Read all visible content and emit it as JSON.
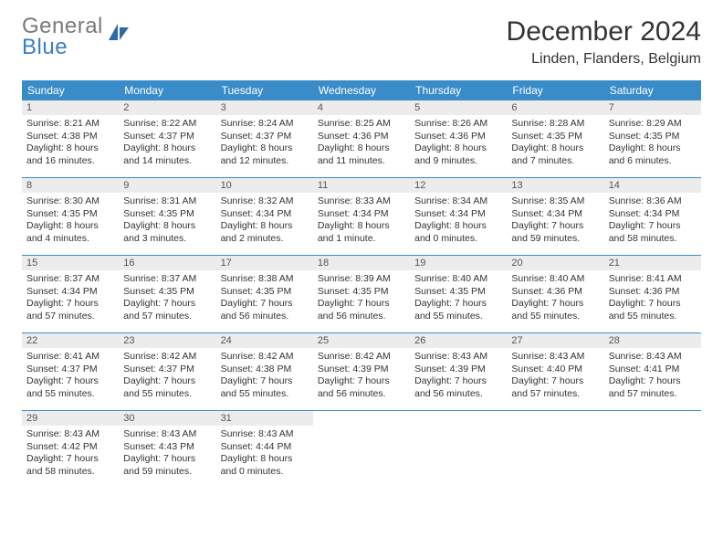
{
  "logo": {
    "line1": "General",
    "line2": "Blue",
    "color1": "#7a7a78",
    "color2": "#3a7fc4"
  },
  "header": {
    "month_title": "December 2024",
    "location": "Linden, Flanders, Belgium"
  },
  "styling": {
    "header_bg": "#3a8cc9",
    "header_fg": "#ffffff",
    "daybar_bg": "#ececec",
    "daybar_fg": "#555555",
    "row_border": "#3a8cc9",
    "page_bg": "#ffffff",
    "text": "#333333"
  },
  "weekdays": [
    "Sunday",
    "Monday",
    "Tuesday",
    "Wednesday",
    "Thursday",
    "Friday",
    "Saturday"
  ],
  "weeks": [
    [
      {
        "n": "1",
        "l1": "Sunrise: 8:21 AM",
        "l2": "Sunset: 4:38 PM",
        "l3": "Daylight: 8 hours",
        "l4": "and 16 minutes."
      },
      {
        "n": "2",
        "l1": "Sunrise: 8:22 AM",
        "l2": "Sunset: 4:37 PM",
        "l3": "Daylight: 8 hours",
        "l4": "and 14 minutes."
      },
      {
        "n": "3",
        "l1": "Sunrise: 8:24 AM",
        "l2": "Sunset: 4:37 PM",
        "l3": "Daylight: 8 hours",
        "l4": "and 12 minutes."
      },
      {
        "n": "4",
        "l1": "Sunrise: 8:25 AM",
        "l2": "Sunset: 4:36 PM",
        "l3": "Daylight: 8 hours",
        "l4": "and 11 minutes."
      },
      {
        "n": "5",
        "l1": "Sunrise: 8:26 AM",
        "l2": "Sunset: 4:36 PM",
        "l3": "Daylight: 8 hours",
        "l4": "and 9 minutes."
      },
      {
        "n": "6",
        "l1": "Sunrise: 8:28 AM",
        "l2": "Sunset: 4:35 PM",
        "l3": "Daylight: 8 hours",
        "l4": "and 7 minutes."
      },
      {
        "n": "7",
        "l1": "Sunrise: 8:29 AM",
        "l2": "Sunset: 4:35 PM",
        "l3": "Daylight: 8 hours",
        "l4": "and 6 minutes."
      }
    ],
    [
      {
        "n": "8",
        "l1": "Sunrise: 8:30 AM",
        "l2": "Sunset: 4:35 PM",
        "l3": "Daylight: 8 hours",
        "l4": "and 4 minutes."
      },
      {
        "n": "9",
        "l1": "Sunrise: 8:31 AM",
        "l2": "Sunset: 4:35 PM",
        "l3": "Daylight: 8 hours",
        "l4": "and 3 minutes."
      },
      {
        "n": "10",
        "l1": "Sunrise: 8:32 AM",
        "l2": "Sunset: 4:34 PM",
        "l3": "Daylight: 8 hours",
        "l4": "and 2 minutes."
      },
      {
        "n": "11",
        "l1": "Sunrise: 8:33 AM",
        "l2": "Sunset: 4:34 PM",
        "l3": "Daylight: 8 hours",
        "l4": "and 1 minute."
      },
      {
        "n": "12",
        "l1": "Sunrise: 8:34 AM",
        "l2": "Sunset: 4:34 PM",
        "l3": "Daylight: 8 hours",
        "l4": "and 0 minutes."
      },
      {
        "n": "13",
        "l1": "Sunrise: 8:35 AM",
        "l2": "Sunset: 4:34 PM",
        "l3": "Daylight: 7 hours",
        "l4": "and 59 minutes."
      },
      {
        "n": "14",
        "l1": "Sunrise: 8:36 AM",
        "l2": "Sunset: 4:34 PM",
        "l3": "Daylight: 7 hours",
        "l4": "and 58 minutes."
      }
    ],
    [
      {
        "n": "15",
        "l1": "Sunrise: 8:37 AM",
        "l2": "Sunset: 4:34 PM",
        "l3": "Daylight: 7 hours",
        "l4": "and 57 minutes."
      },
      {
        "n": "16",
        "l1": "Sunrise: 8:37 AM",
        "l2": "Sunset: 4:35 PM",
        "l3": "Daylight: 7 hours",
        "l4": "and 57 minutes."
      },
      {
        "n": "17",
        "l1": "Sunrise: 8:38 AM",
        "l2": "Sunset: 4:35 PM",
        "l3": "Daylight: 7 hours",
        "l4": "and 56 minutes."
      },
      {
        "n": "18",
        "l1": "Sunrise: 8:39 AM",
        "l2": "Sunset: 4:35 PM",
        "l3": "Daylight: 7 hours",
        "l4": "and 56 minutes."
      },
      {
        "n": "19",
        "l1": "Sunrise: 8:40 AM",
        "l2": "Sunset: 4:35 PM",
        "l3": "Daylight: 7 hours",
        "l4": "and 55 minutes."
      },
      {
        "n": "20",
        "l1": "Sunrise: 8:40 AM",
        "l2": "Sunset: 4:36 PM",
        "l3": "Daylight: 7 hours",
        "l4": "and 55 minutes."
      },
      {
        "n": "21",
        "l1": "Sunrise: 8:41 AM",
        "l2": "Sunset: 4:36 PM",
        "l3": "Daylight: 7 hours",
        "l4": "and 55 minutes."
      }
    ],
    [
      {
        "n": "22",
        "l1": "Sunrise: 8:41 AM",
        "l2": "Sunset: 4:37 PM",
        "l3": "Daylight: 7 hours",
        "l4": "and 55 minutes."
      },
      {
        "n": "23",
        "l1": "Sunrise: 8:42 AM",
        "l2": "Sunset: 4:37 PM",
        "l3": "Daylight: 7 hours",
        "l4": "and 55 minutes."
      },
      {
        "n": "24",
        "l1": "Sunrise: 8:42 AM",
        "l2": "Sunset: 4:38 PM",
        "l3": "Daylight: 7 hours",
        "l4": "and 55 minutes."
      },
      {
        "n": "25",
        "l1": "Sunrise: 8:42 AM",
        "l2": "Sunset: 4:39 PM",
        "l3": "Daylight: 7 hours",
        "l4": "and 56 minutes."
      },
      {
        "n": "26",
        "l1": "Sunrise: 8:43 AM",
        "l2": "Sunset: 4:39 PM",
        "l3": "Daylight: 7 hours",
        "l4": "and 56 minutes."
      },
      {
        "n": "27",
        "l1": "Sunrise: 8:43 AM",
        "l2": "Sunset: 4:40 PM",
        "l3": "Daylight: 7 hours",
        "l4": "and 57 minutes."
      },
      {
        "n": "28",
        "l1": "Sunrise: 8:43 AM",
        "l2": "Sunset: 4:41 PM",
        "l3": "Daylight: 7 hours",
        "l4": "and 57 minutes."
      }
    ],
    [
      {
        "n": "29",
        "l1": "Sunrise: 8:43 AM",
        "l2": "Sunset: 4:42 PM",
        "l3": "Daylight: 7 hours",
        "l4": "and 58 minutes."
      },
      {
        "n": "30",
        "l1": "Sunrise: 8:43 AM",
        "l2": "Sunset: 4:43 PM",
        "l3": "Daylight: 7 hours",
        "l4": "and 59 minutes."
      },
      {
        "n": "31",
        "l1": "Sunrise: 8:43 AM",
        "l2": "Sunset: 4:44 PM",
        "l3": "Daylight: 8 hours",
        "l4": "and 0 minutes."
      },
      {},
      {},
      {},
      {}
    ]
  ]
}
